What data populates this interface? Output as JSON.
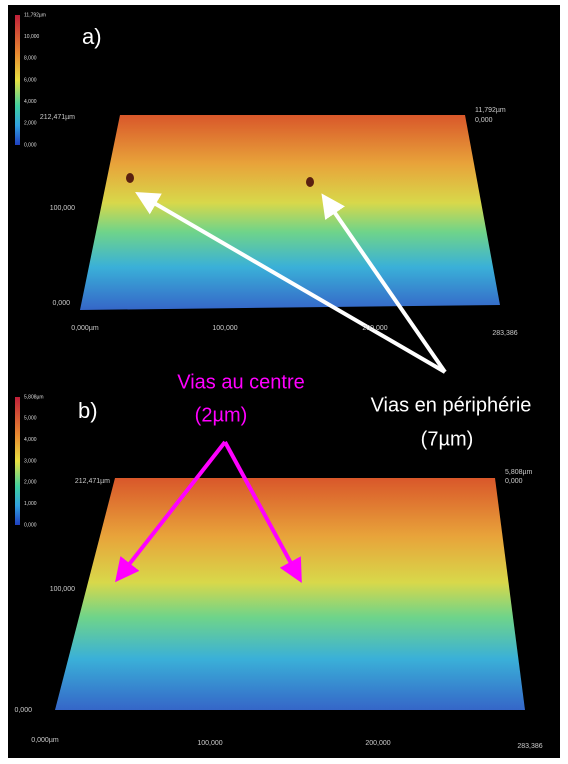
{
  "panels": [
    {
      "label": "a)",
      "colorbar": [
        "11,792µm",
        "10,000",
        "8,000",
        "6,000",
        "4,000",
        "2,000",
        "0,000"
      ],
      "y_axis": [
        "212,471µm",
        "100,000",
        "0,000"
      ],
      "x_axis": [
        "0,000µm",
        "100,000",
        "200,000",
        "283,386"
      ],
      "z_axis": [
        "11,792µm",
        "0,000"
      ]
    },
    {
      "label": "b)",
      "colorbar": [
        "5,808µm",
        "5,000",
        "4,000",
        "3,000",
        "2,000",
        "1,000",
        "0,000"
      ],
      "y_axis": [
        "212,471µm",
        "100,000",
        "0,000"
      ],
      "x_axis": [
        "0,000µm",
        "100,000",
        "200,000",
        "283,386"
      ],
      "z_axis": [
        "5,808µm",
        "0,000"
      ]
    }
  ],
  "annotations": {
    "center": {
      "line1": "Vias au centre",
      "line2": "(2µm)"
    },
    "periphery": {
      "line1": "Vias en périphérie",
      "line2": "(7µm)"
    }
  }
}
